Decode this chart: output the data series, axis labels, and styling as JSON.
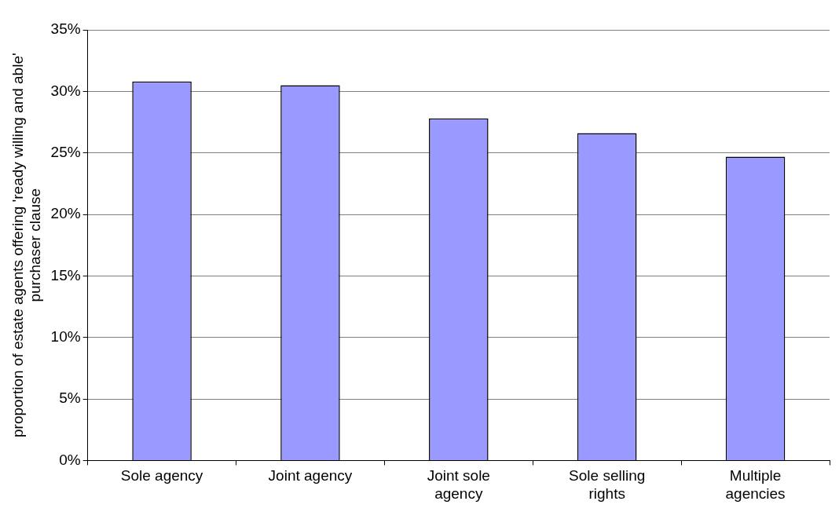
{
  "chart_data": {
    "type": "bar",
    "ylabel": "proportion of estate agents offering 'ready willing and able' purchaser clause",
    "categories": [
      "Sole agency",
      "Joint agency",
      "Joint sole agency",
      "Sole selling rights",
      "Multiple agencies"
    ],
    "values": [
      30.8,
      30.5,
      27.8,
      26.6,
      24.7
    ],
    "color": "#9999ff",
    "ylim": [
      0,
      35
    ],
    "yticks": [
      {
        "value": 0,
        "label": "0%"
      },
      {
        "value": 5,
        "label": "5%"
      },
      {
        "value": 10,
        "label": "10%"
      },
      {
        "value": 15,
        "label": "15%"
      },
      {
        "value": 20,
        "label": "20%"
      },
      {
        "value": 25,
        "label": "25%"
      },
      {
        "value": 30,
        "label": "30%"
      },
      {
        "value": 35,
        "label": "35%"
      }
    ],
    "grid": "y",
    "legend": false
  }
}
